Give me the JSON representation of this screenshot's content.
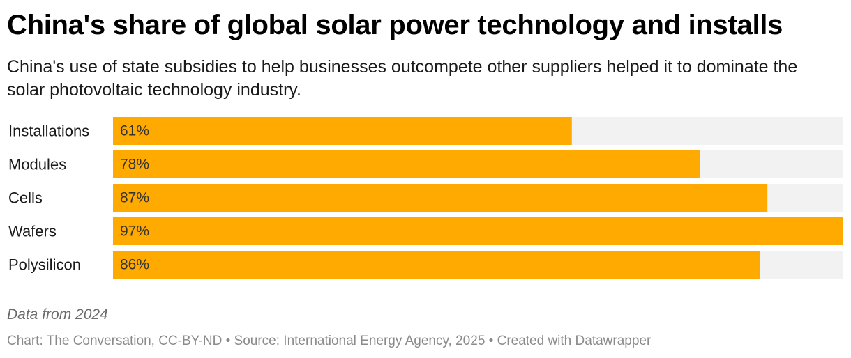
{
  "header": {
    "title": "China's share of global solar power technology and installs",
    "subtitle": "China's use of state subsidies to help businesses outcompete other suppliers helped it to dominate the solar photovoltaic technology industry."
  },
  "colors": {
    "bar": "#ffaa00",
    "track": "#f2f2f2"
  },
  "chart_data": {
    "type": "bar",
    "orientation": "horizontal",
    "title": "China's share of global solar power technology and installs",
    "categories": [
      "Installations",
      "Modules",
      "Cells",
      "Wafers",
      "Polysilicon"
    ],
    "values": [
      61,
      78,
      87,
      97,
      86
    ],
    "value_labels": [
      "61%",
      "78%",
      "87%",
      "97%",
      "86%"
    ],
    "unit": "%",
    "xlim": [
      0,
      97
    ],
    "xlabel": "",
    "ylabel": ""
  },
  "footer": {
    "note": "Data from 2024",
    "credits": "Chart: The Conversation, CC-BY-ND • Source: International Energy Agency, 2025 • Created with Datawrapper"
  }
}
